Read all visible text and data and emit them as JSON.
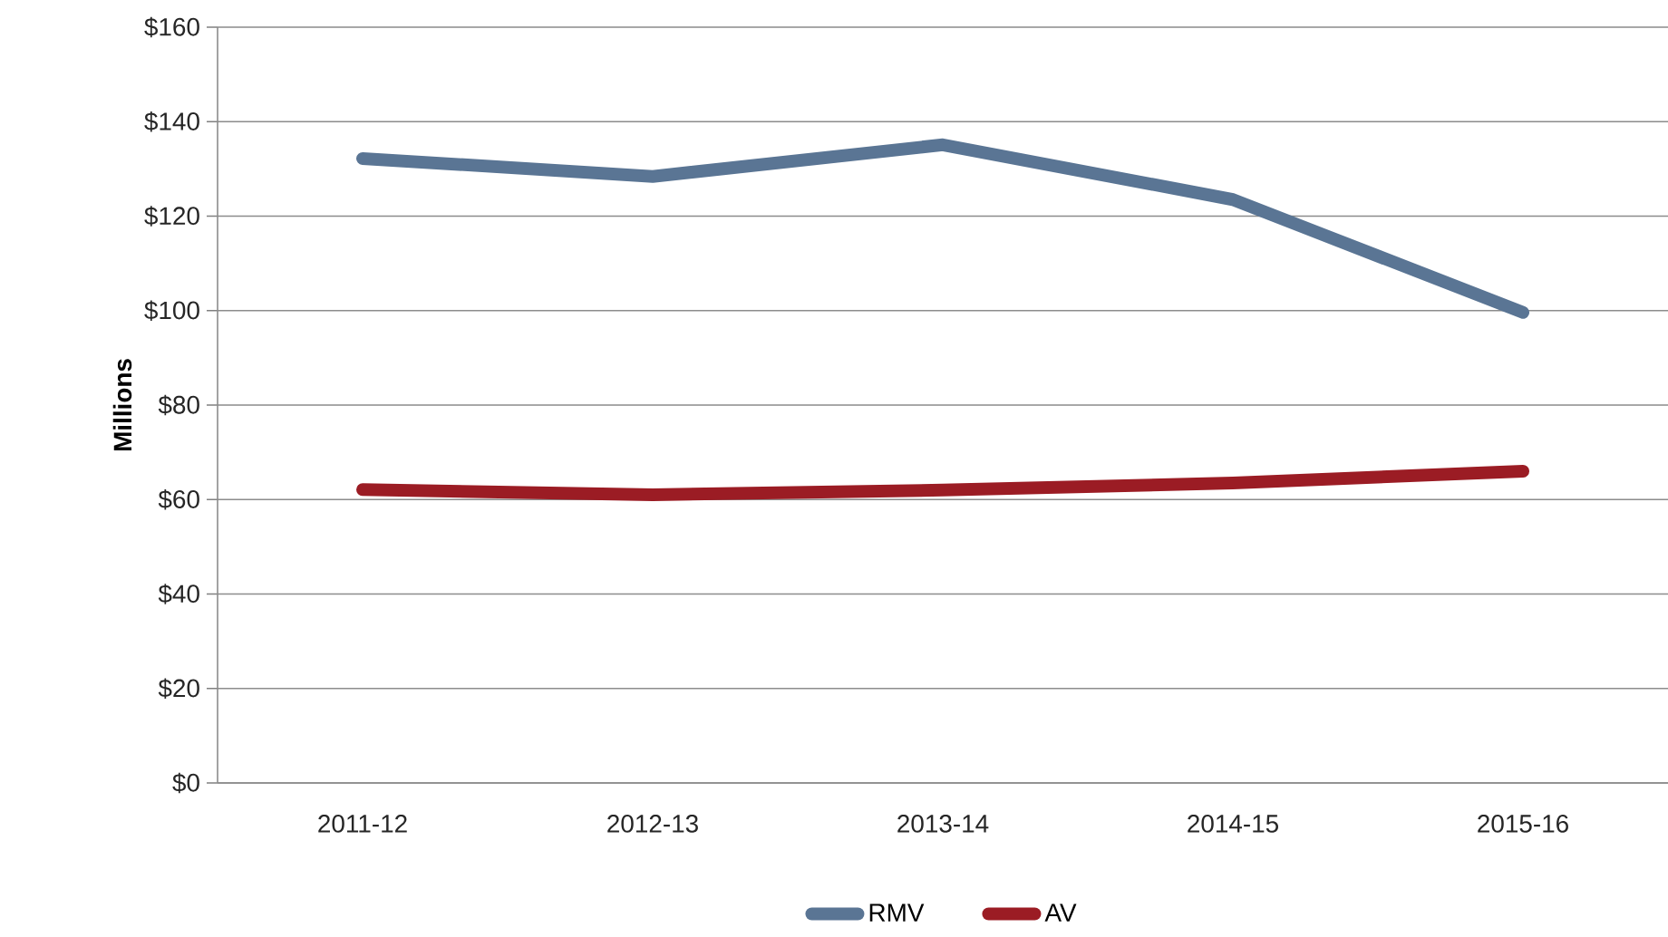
{
  "chart_data": {
    "type": "line",
    "ylabel": "Millions",
    "categories": [
      "2011-12",
      "2012-13",
      "2013-14",
      "2014-15",
      "2015-16"
    ],
    "series": [
      {
        "name": "RMV",
        "color": "#5a7594",
        "values": [
          132.2,
          128.4,
          135.1,
          123.5,
          99.6
        ]
      },
      {
        "name": "AV",
        "color": "#9b1c24",
        "values": [
          62.1,
          61,
          62,
          63.5,
          66
        ]
      }
    ],
    "ylim": [
      0,
      160
    ],
    "yticks": [
      {
        "value": 0,
        "label": "$0"
      },
      {
        "value": 20,
        "label": "$20"
      },
      {
        "value": 40,
        "label": "$40"
      },
      {
        "value": 60,
        "label": "$60"
      },
      {
        "value": 80,
        "label": "$80"
      },
      {
        "value": 100,
        "label": "$100"
      },
      {
        "value": 120,
        "label": "$120"
      },
      {
        "value": 140,
        "label": "$140"
      },
      {
        "value": 160,
        "label": "$160"
      }
    ],
    "grid": "y",
    "legend": "bottom",
    "marker": "none",
    "line_style": "solid"
  }
}
